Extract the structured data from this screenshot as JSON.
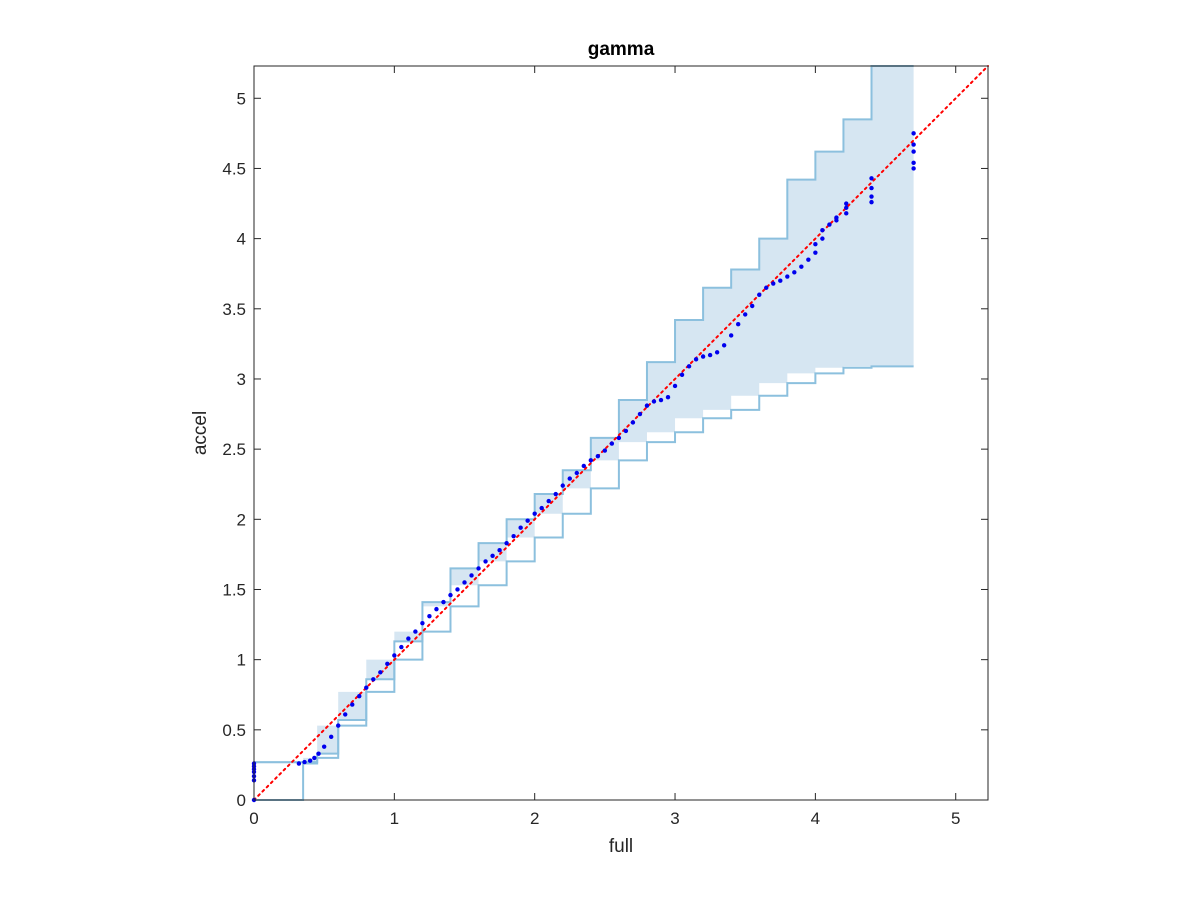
{
  "chart_data": {
    "type": "scatter",
    "title": "gamma",
    "xlabel": "full",
    "ylabel": "accel",
    "xlim": [
      0,
      5.23
    ],
    "ylim": [
      0,
      5.23
    ],
    "x_ticks": [
      "0",
      "1",
      "2",
      "3",
      "4",
      "5"
    ],
    "y_ticks": [
      "0",
      "0.5",
      "1",
      "1.5",
      "2",
      "2.5",
      "3",
      "3.5",
      "4",
      "4.5",
      "5"
    ],
    "grid": false,
    "legend": "none",
    "reference_line": {
      "style": "dotted",
      "color": "#ff0000",
      "from": [
        0,
        0
      ],
      "to": [
        5.23,
        5.23
      ]
    },
    "confidence_band": {
      "color": "#d6e6f2",
      "edge_color": "#8cc0de",
      "x": [
        0,
        0.35,
        0.45,
        0.6,
        0.8,
        1.0,
        1.2,
        1.4,
        1.6,
        1.8,
        2.0,
        2.2,
        2.4,
        2.6,
        2.8,
        3.0,
        3.2,
        3.4,
        3.6,
        3.8,
        4.0,
        4.2,
        4.4,
        4.6,
        4.7
      ],
      "upper": [
        0.27,
        0.27,
        0.33,
        0.57,
        0.86,
        1.13,
        1.41,
        1.65,
        1.83,
        2.0,
        2.18,
        2.35,
        2.58,
        2.85,
        3.12,
        3.42,
        3.65,
        3.78,
        4.0,
        4.42,
        4.62,
        4.85,
        5.23,
        5.23,
        5.23
      ],
      "lower": [
        0.0,
        0.26,
        0.3,
        0.53,
        0.77,
        1.0,
        1.2,
        1.38,
        1.53,
        1.7,
        1.87,
        2.04,
        2.22,
        2.42,
        2.55,
        2.62,
        2.72,
        2.78,
        2.88,
        2.97,
        3.04,
        3.08,
        3.09,
        3.09,
        3.09
      ]
    },
    "series": [
      {
        "color": "#0000ee",
        "x": [
          0,
          0,
          0,
          0,
          0,
          0,
          0,
          0.32,
          0.36,
          0.4,
          0.43,
          0.46,
          0.5,
          0.55,
          0.6,
          0.65,
          0.7,
          0.75,
          0.8,
          0.85,
          0.9,
          0.95,
          1.0,
          1.05,
          1.1,
          1.15,
          1.2,
          1.25,
          1.3,
          1.35,
          1.4,
          1.45,
          1.5,
          1.55,
          1.6,
          1.65,
          1.7,
          1.75,
          1.8,
          1.85,
          1.9,
          1.95,
          2.0,
          2.05,
          2.1,
          2.15,
          2.2,
          2.25,
          2.3,
          2.35,
          2.4,
          2.45,
          2.5,
          2.55,
          2.6,
          2.65,
          2.7,
          2.75,
          2.8,
          2.85,
          2.9,
          2.95,
          3.0,
          3.05,
          3.1,
          3.15,
          3.2,
          3.25,
          3.3,
          3.35,
          3.4,
          3.45,
          3.5,
          3.55,
          3.6,
          3.65,
          3.7,
          3.75,
          3.8,
          3.85,
          3.9,
          3.95,
          4.0,
          4.0,
          4.05,
          4.05,
          4.1,
          4.15,
          4.15,
          4.22,
          4.22,
          4.22,
          4.4,
          4.4,
          4.4,
          4.4,
          4.7,
          4.7,
          4.7,
          4.7,
          4.7
        ],
        "y": [
          0.0,
          0.14,
          0.17,
          0.2,
          0.22,
          0.24,
          0.26,
          0.26,
          0.27,
          0.28,
          0.3,
          0.33,
          0.38,
          0.45,
          0.53,
          0.61,
          0.68,
          0.74,
          0.8,
          0.86,
          0.91,
          0.97,
          1.03,
          1.09,
          1.15,
          1.2,
          1.26,
          1.31,
          1.36,
          1.41,
          1.46,
          1.5,
          1.55,
          1.6,
          1.65,
          1.7,
          1.74,
          1.78,
          1.83,
          1.88,
          1.94,
          1.99,
          2.04,
          2.08,
          2.13,
          2.18,
          2.24,
          2.29,
          2.33,
          2.38,
          2.42,
          2.45,
          2.49,
          2.54,
          2.58,
          2.63,
          2.69,
          2.75,
          2.81,
          2.84,
          2.85,
          2.87,
          2.95,
          3.03,
          3.09,
          3.14,
          3.16,
          3.17,
          3.19,
          3.24,
          3.31,
          3.39,
          3.46,
          3.52,
          3.6,
          3.65,
          3.68,
          3.7,
          3.73,
          3.76,
          3.8,
          3.85,
          3.9,
          3.96,
          4.0,
          4.06,
          4.1,
          4.13,
          4.15,
          4.18,
          4.22,
          4.25,
          4.26,
          4.3,
          4.36,
          4.43,
          4.5,
          4.54,
          4.62,
          4.67,
          4.75
        ]
      }
    ]
  }
}
